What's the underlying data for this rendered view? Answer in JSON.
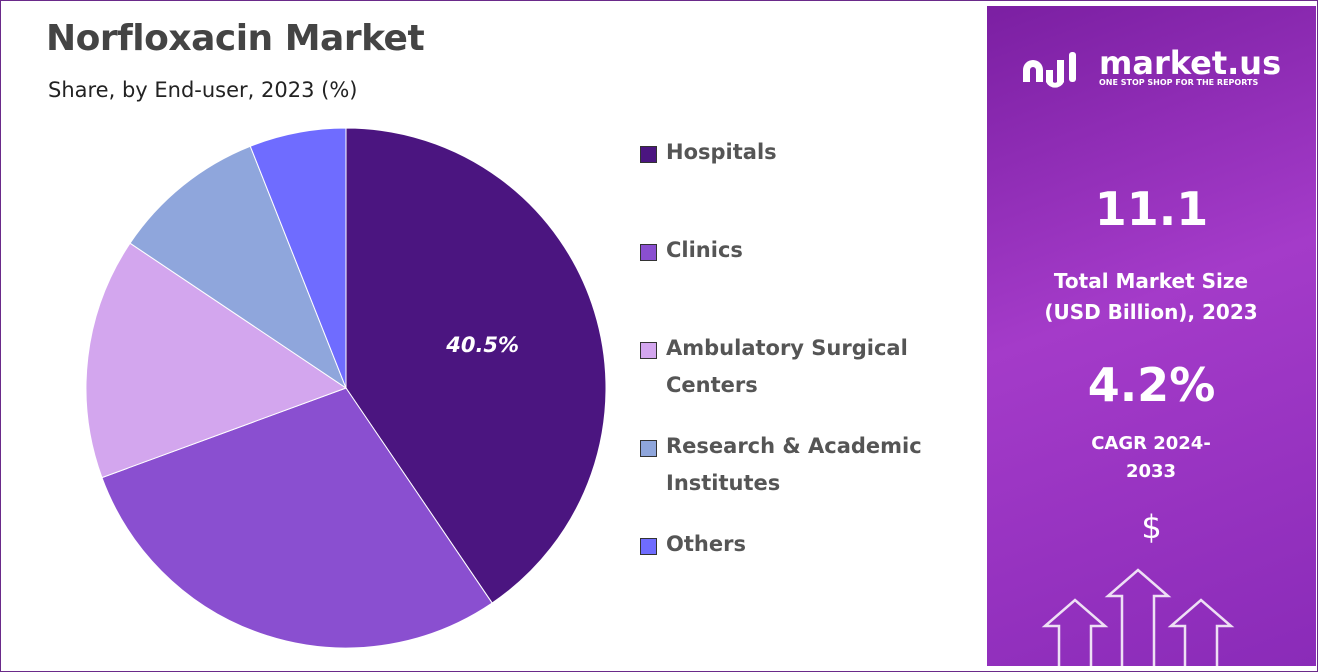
{
  "chart_data": {
    "type": "pie",
    "title": "Norfloxacin Market",
    "subtitle": "Share, by End-user, 2023 (%)",
    "categories": [
      "Hospitals",
      "Clinics",
      "Ambulatory Surgical Centers",
      "Research & Academic Institutes",
      "Others"
    ],
    "values": [
      40.5,
      28.9,
      15.0,
      9.6,
      6.0
    ],
    "value_labels": [
      "40.5%",
      null,
      null,
      null,
      null
    ],
    "colors": [
      "#4b1580",
      "#8a4fd0",
      "#d3a6ee",
      "#8fa6dc",
      "#6f6cff"
    ],
    "legend": "right"
  },
  "panel": {
    "brand": "market.us",
    "tagline": "ONE STOP SHOP FOR THE REPORTS",
    "market_size": "11.1",
    "market_size_label": "Total Market Size (USD Billion), 2023",
    "cagr": "4.2%",
    "cagr_label": "CAGR 2024-2033",
    "currency": "$"
  }
}
